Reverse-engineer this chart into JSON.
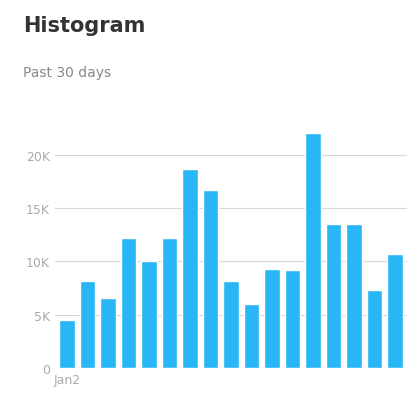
{
  "title": "Histogram",
  "subtitle": "Past 30 days",
  "bar_color": "#29b6f6",
  "background_color": "#ffffff",
  "xlabel_tick": "Jan2",
  "values": [
    4500,
    8200,
    6600,
    12200,
    10000,
    12200,
    18700,
    16700,
    8200,
    6000,
    9300,
    9200,
    22000,
    13500,
    13500,
    7300,
    10700
  ],
  "ylim": [
    0,
    25000
  ],
  "yticks": [
    0,
    5000,
    10000,
    15000,
    20000
  ],
  "ytick_labels": [
    "0",
    "5K",
    "10K",
    "15K",
    "20K"
  ],
  "grid_color": "#d8d8d8",
  "title_fontsize": 15,
  "subtitle_fontsize": 10,
  "tick_color": "#aaaaaa",
  "title_color": "#333333",
  "subtitle_color": "#888888",
  "bar_width": 0.75
}
